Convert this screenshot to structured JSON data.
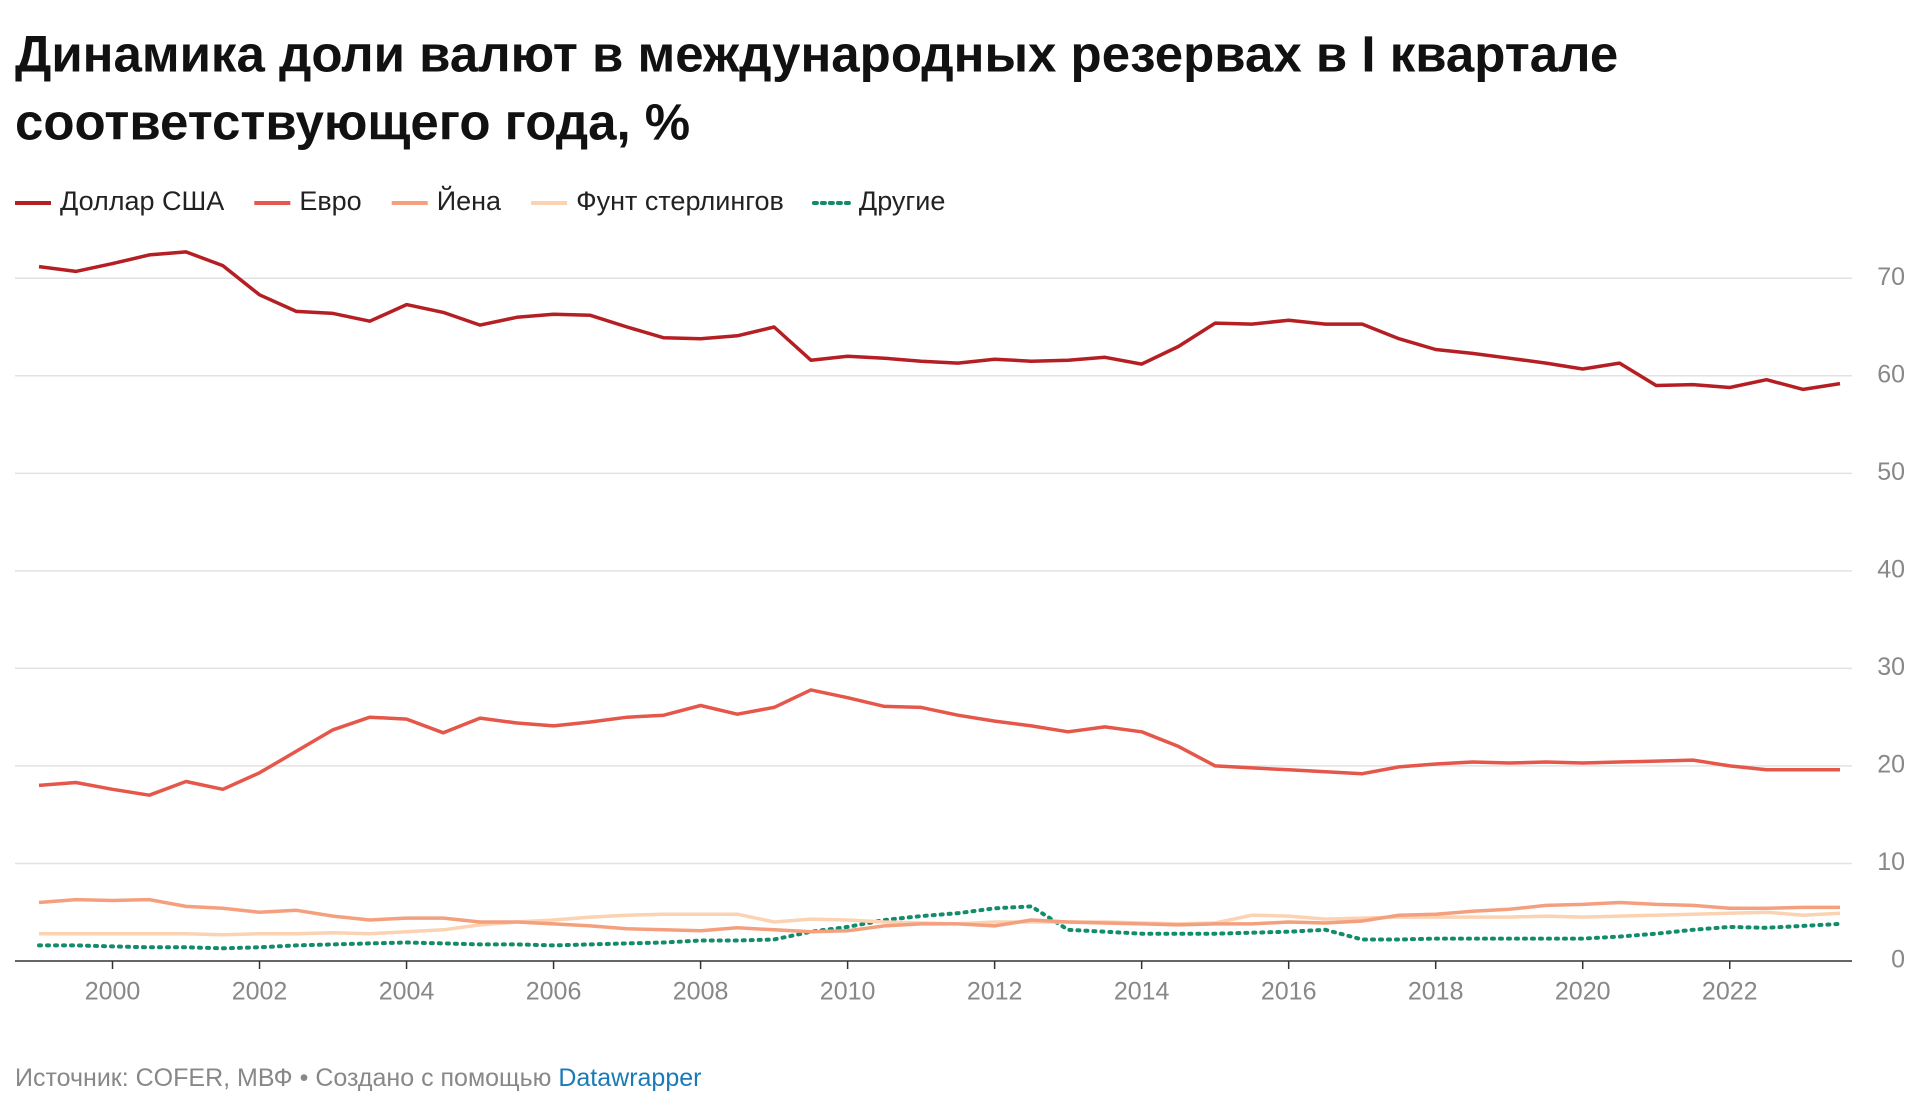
{
  "chart_data": {
    "type": "line",
    "title_lines": [
      "Динамика доли валют в международных резервах в I квартале",
      "соответствующего года, %"
    ],
    "source": "Источник: COFER, МВФ • Создано с помощью",
    "credit": "Datawrapper",
    "x": [
      1999,
      1999.5,
      2000,
      2000.5,
      2001,
      2001.5,
      2002,
      2002.5,
      2003,
      2003.5,
      2004,
      2004.5,
      2005,
      2005.5,
      2006,
      2006.5,
      2007,
      2007.5,
      2008,
      2008.5,
      2009,
      2009.5,
      2010,
      2010.5,
      2011,
      2011.5,
      2012,
      2012.5,
      2013,
      2013.5,
      2014,
      2014.5,
      2015,
      2015.5,
      2016,
      2016.5,
      2017,
      2017.5,
      2018,
      2018.5,
      2019,
      2019.5,
      2020,
      2020.5,
      2021,
      2021.5,
      2022,
      2022.5,
      2023,
      2023.5
    ],
    "series": [
      {
        "name": "Доллар США",
        "color": "#b51f23",
        "style": "solid",
        "values": [
          71.2,
          70.7,
          71.5,
          72.4,
          72.7,
          71.3,
          68.3,
          66.6,
          66.4,
          65.6,
          67.3,
          66.5,
          65.2,
          66.0,
          66.3,
          66.2,
          65.0,
          63.9,
          63.8,
          64.1,
          65.0,
          61.6,
          62.0,
          61.8,
          61.5,
          61.3,
          61.7,
          61.5,
          61.6,
          61.9,
          61.2,
          63.0,
          65.4,
          65.3,
          65.7,
          65.3,
          65.3,
          63.8,
          62.7,
          62.3,
          61.8,
          61.3,
          60.7,
          61.3,
          59.0,
          59.1,
          58.8,
          59.6,
          58.6,
          59.2
        ]
      },
      {
        "name": "Евро",
        "color": "#e5574a",
        "style": "solid",
        "values": [
          18.0,
          18.3,
          17.6,
          17.0,
          18.4,
          17.6,
          19.3,
          21.5,
          23.7,
          25.0,
          24.8,
          23.4,
          24.9,
          24.4,
          24.1,
          24.5,
          25.0,
          25.2,
          26.2,
          25.3,
          26.0,
          27.8,
          27.0,
          26.1,
          26.0,
          25.2,
          24.6,
          24.1,
          23.5,
          24.0,
          23.5,
          22.0,
          20.0,
          19.8,
          19.6,
          19.4,
          19.2,
          19.9,
          20.2,
          20.4,
          20.3,
          20.4,
          20.3,
          20.4,
          20.5,
          20.6,
          20.0,
          19.6,
          19.6,
          19.6
        ]
      },
      {
        "name": "Йена",
        "color": "#f4a07e",
        "style": "solid",
        "values": [
          6.0,
          6.3,
          6.2,
          6.3,
          5.6,
          5.4,
          5.0,
          5.2,
          4.6,
          4.2,
          4.4,
          4.4,
          4.0,
          4.0,
          3.8,
          3.6,
          3.3,
          3.2,
          3.1,
          3.4,
          3.2,
          3.0,
          3.1,
          3.6,
          3.8,
          3.8,
          3.6,
          4.2,
          4.0,
          3.9,
          3.8,
          3.7,
          3.8,
          3.8,
          4.0,
          3.9,
          4.1,
          4.7,
          4.8,
          5.1,
          5.3,
          5.7,
          5.8,
          6.0,
          5.8,
          5.7,
          5.4,
          5.4,
          5.5,
          5.5
        ]
      },
      {
        "name": "Фунт стерлингов",
        "color": "#fbd3b3",
        "style": "solid",
        "values": [
          2.8,
          2.8,
          2.8,
          2.8,
          2.8,
          2.7,
          2.8,
          2.8,
          2.9,
          2.8,
          3.0,
          3.2,
          3.7,
          4.0,
          4.2,
          4.5,
          4.7,
          4.8,
          4.8,
          4.8,
          4.0,
          4.3,
          4.2,
          4.0,
          3.9,
          3.8,
          4.0,
          4.0,
          4.0,
          4.0,
          3.9,
          3.8,
          3.9,
          4.7,
          4.6,
          4.3,
          4.4,
          4.5,
          4.5,
          4.5,
          4.5,
          4.6,
          4.5,
          4.6,
          4.7,
          4.8,
          4.9,
          5.0,
          4.7,
          4.9
        ]
      },
      {
        "name": "Другие",
        "color": "#138c6a",
        "style": "dotted",
        "values": [
          1.6,
          1.6,
          1.5,
          1.4,
          1.4,
          1.3,
          1.4,
          1.6,
          1.7,
          1.8,
          1.9,
          1.8,
          1.7,
          1.7,
          1.6,
          1.7,
          1.8,
          1.9,
          2.1,
          2.1,
          2.2,
          3.0,
          3.5,
          4.2,
          4.6,
          4.9,
          5.4,
          5.6,
          3.2,
          3.0,
          2.8,
          2.8,
          2.8,
          2.9,
          3.0,
          3.2,
          2.2,
          2.2,
          2.3,
          2.3,
          2.3,
          2.3,
          2.3,
          2.5,
          2.8,
          3.2,
          3.5,
          3.4,
          3.6,
          3.8
        ]
      }
    ],
    "xlim": [
      1999,
      2023.5
    ],
    "xticks": [
      2000,
      2002,
      2004,
      2006,
      2008,
      2010,
      2012,
      2014,
      2016,
      2018,
      2020,
      2022
    ],
    "ylim": [
      0,
      73
    ],
    "yticks": [
      0,
      10,
      20,
      30,
      40,
      50,
      60,
      70
    ],
    "grid": true,
    "y_axis_side": "right"
  }
}
